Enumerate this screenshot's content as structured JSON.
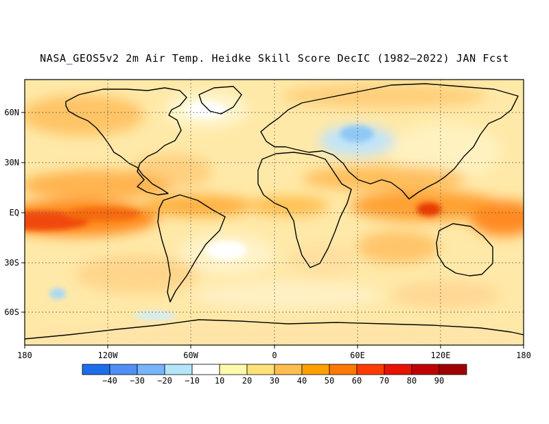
{
  "title": "NASA_GEOS5v2 2m Air Temp. Heidke Skill Score DecIC (1982—2022) JAN Fcst",
  "x_axis_labels": [
    "180",
    "120W",
    "60W",
    "0",
    "60E",
    "120E",
    "180"
  ],
  "y_axis_labels": [
    "60N",
    "30N",
    "EQ",
    "30S",
    "60S"
  ],
  "colorbar": {
    "tick_labels": [
      "−40",
      "−30",
      "−20",
      "−10",
      "10",
      "20",
      "30",
      "40",
      "50",
      "60",
      "70",
      "80",
      "90"
    ],
    "colors": [
      "#1e6eeb",
      "#508ff5",
      "#78b4fa",
      "#b4e6fa",
      "#ffffff",
      "#fffaaa",
      "#ffe178",
      "#ffbe50",
      "#ffa000",
      "#ff7800",
      "#ff3c00",
      "#e61400",
      "#c00000",
      "#a00000"
    ]
  }
}
